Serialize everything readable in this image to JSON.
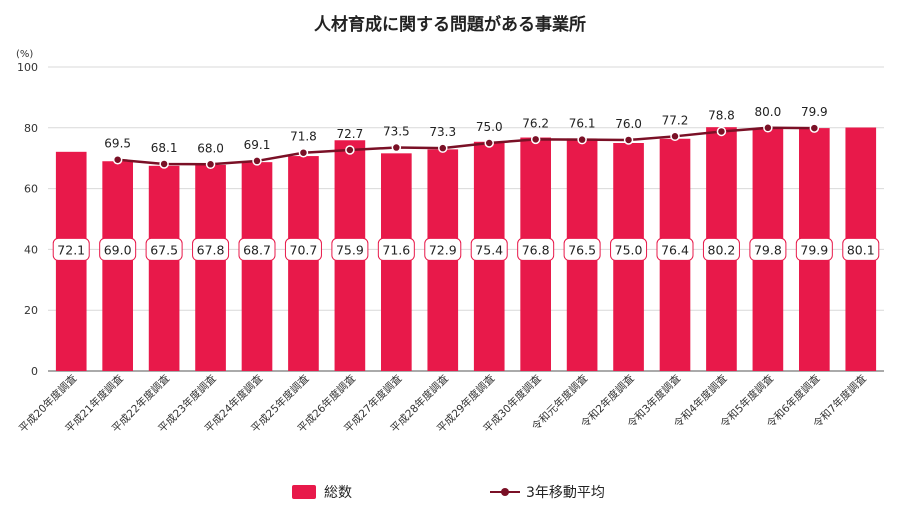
{
  "chart_data": {
    "type": "bar",
    "title": "人材育成に関する問題がある事業所",
    "ylabel": "(%)",
    "ylim": [
      0,
      100
    ],
    "yticks": [
      0,
      20,
      40,
      60,
      80,
      100
    ],
    "grid": true,
    "legend_position": "bottom",
    "categories": [
      "平成20年度調査",
      "平成21年度調査",
      "平成22年度調査",
      "平成23年度調査",
      "平成24年度調査",
      "平成25年度調査",
      "平成26年度調査",
      "平成27年度調査",
      "平成28年度調査",
      "平成29年度調査",
      "平成30年度調査",
      "令和元年度調査",
      "令和2年度調査",
      "令和3年度調査",
      "令和4年度調査",
      "令和5年度調査",
      "令和6年度調査",
      "令和7年度調査"
    ],
    "series": [
      {
        "name": "総数",
        "type": "bar",
        "color": "#e8194a",
        "values": [
          72.1,
          69.0,
          67.5,
          67.8,
          68.7,
          70.7,
          75.9,
          71.6,
          72.9,
          75.4,
          76.8,
          76.5,
          75.0,
          76.4,
          80.2,
          79.8,
          79.9,
          80.1
        ]
      },
      {
        "name": "3年移動平均",
        "type": "line",
        "color": "#7a1026",
        "values": [
          null,
          69.5,
          68.1,
          68.0,
          69.1,
          71.8,
          72.7,
          73.5,
          73.3,
          75.0,
          76.2,
          76.1,
          76.0,
          77.2,
          78.8,
          80.0,
          79.9,
          null
        ]
      }
    ]
  }
}
